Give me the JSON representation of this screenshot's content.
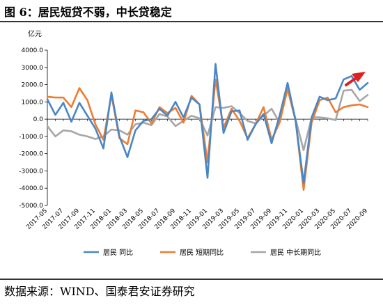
{
  "title": "图 6：居民短贷不弱，中长贷稳定",
  "source": "数据来源：WIND、国泰君安证券研究",
  "chart_data": {
    "type": "line",
    "yunit": "亿元",
    "ylim": [
      -5000,
      4000
    ],
    "yticks": [
      "4000.0",
      "3000.0",
      "2000.0",
      "1000.0",
      "0.0",
      "-1000.0",
      "-2000.0",
      "-3000.0",
      "-4000.0",
      "-5000.0"
    ],
    "x": [
      "2017-05",
      "2017-06",
      "2017-07",
      "2017-08",
      "2017-09",
      "2017-10",
      "2017-11",
      "2017-12",
      "2018-01",
      "2018-02",
      "2018-03",
      "2018-04",
      "2018-05",
      "2018-06",
      "2018-07",
      "2018-08",
      "2018-09",
      "2018-10",
      "2018-11",
      "2018-12",
      "2019-01",
      "2019-02",
      "2019-03",
      "2019-04",
      "2019-05",
      "2019-06",
      "2019-07",
      "2019-08",
      "2019-09",
      "2019-10",
      "2019-11",
      "2019-12",
      "2020-01",
      "2020-02",
      "2020-03",
      "2020-04",
      "2020-05",
      "2020-06",
      "2020-07",
      "2020-08",
      "2020-09"
    ],
    "xticks": [
      "2017-05",
      "2017-07",
      "2017-09",
      "2017-11",
      "2018-01",
      "2018-03",
      "2018-05",
      "2018-07",
      "2018-09",
      "2018-11",
      "2019-01",
      "2019-03",
      "2019-05",
      "2019-07",
      "2019-09",
      "2019-11",
      "2020-01",
      "2020-03",
      "2020-05",
      "2020-07",
      "2020-09"
    ],
    "series": [
      {
        "name": "居民  同比",
        "color": "#4a86c6",
        "values": [
          1150,
          250,
          950,
          -150,
          950,
          200,
          -550,
          -1700,
          1550,
          -1000,
          -2200,
          -650,
          -100,
          0,
          600,
          200,
          1000,
          100,
          1250,
          850,
          -3400,
          3200,
          -800,
          450,
          500,
          -1200,
          -300,
          300,
          -1400,
          200,
          2100,
          -100,
          -3700,
          100,
          1300,
          1100,
          1200,
          2300,
          2500,
          1700,
          2100
        ]
      },
      {
        "name": "居民  短期同比",
        "color": "#ed7d31",
        "values": [
          1300,
          1250,
          1250,
          700,
          1800,
          1100,
          -300,
          -1200,
          1400,
          -1100,
          -1450,
          500,
          400,
          -250,
          700,
          350,
          650,
          -200,
          1350,
          850,
          -2500,
          2300,
          -500,
          600,
          -100,
          -1100,
          -300,
          700,
          -1200,
          -200,
          1750,
          -100,
          -4100,
          -200,
          1100,
          1250,
          400,
          700,
          800,
          850,
          700
        ]
      },
      {
        "name": "居民  中长期同比",
        "color": "#a6a6a6",
        "values": [
          -400,
          -1000,
          -650,
          -700,
          -900,
          -1000,
          -1150,
          -1000,
          -600,
          -650,
          -900,
          -300,
          -200,
          -350,
          300,
          150,
          -400,
          -100,
          200,
          50,
          -950,
          700,
          650,
          750,
          350,
          -100,
          -250,
          200,
          600,
          -200,
          1800,
          0,
          -1800,
          100,
          100,
          50,
          -50,
          1650,
          1700,
          1050,
          1400
        ]
      }
    ],
    "legend_position": "bottom",
    "annotation": "red upward arrow near 2020-08"
  }
}
